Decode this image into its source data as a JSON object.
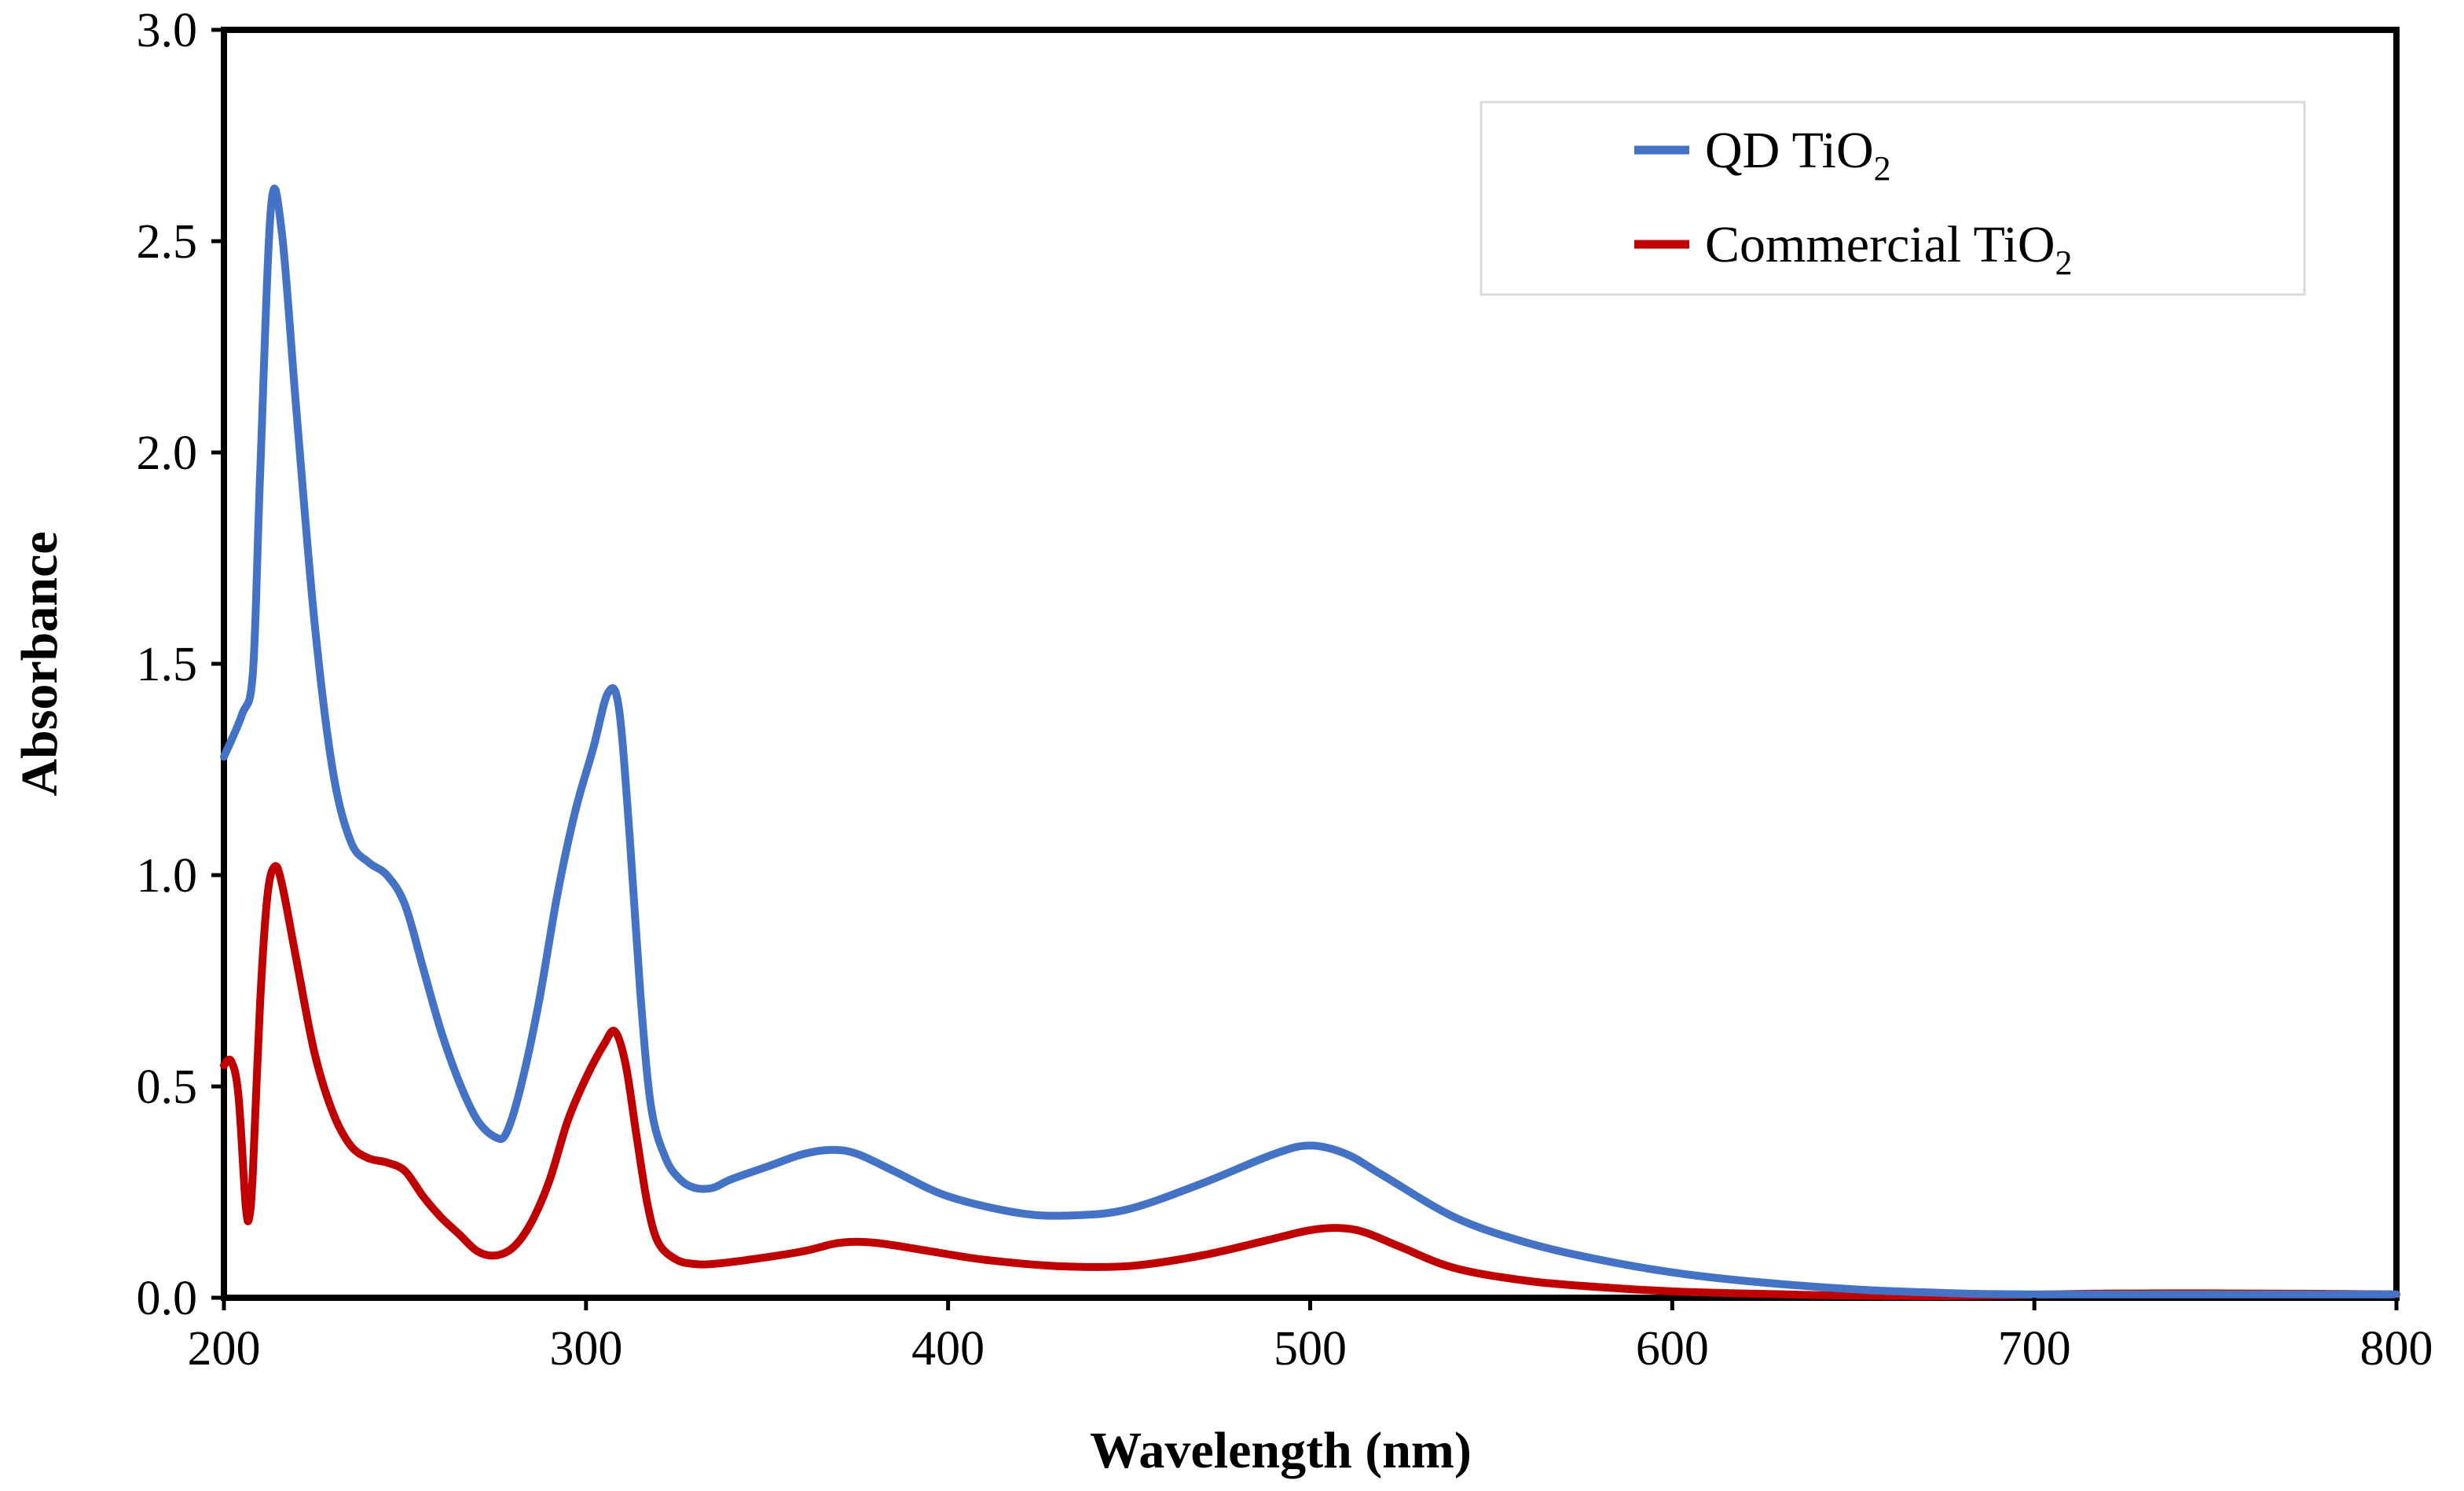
{
  "chart_data": {
    "type": "line",
    "title": "",
    "xlabel": "Wavelength (nm)",
    "ylabel": "Absorbance",
    "xlim": [
      200,
      800
    ],
    "ylim": [
      0,
      3.0
    ],
    "xticks": [
      200,
      300,
      400,
      500,
      600,
      700,
      800
    ],
    "xtick_labels": [
      "200",
      "300",
      "400",
      "500",
      "600",
      "700",
      "800"
    ],
    "yticks": [
      0,
      0.5,
      1.0,
      1.5,
      2.0,
      2.5,
      3.0
    ],
    "ytick_labels": [
      "0.0",
      "0.5",
      "1.0",
      "1.5",
      "2.0",
      "2.5",
      "3.0"
    ],
    "grid": false,
    "legend_position": "top-right",
    "series": [
      {
        "name": "QD TiO2",
        "label_main": "QD TiO",
        "label_sub": "2",
        "color": "#4472C4",
        "x": [
          200,
          205,
          208,
          210,
          213,
          216,
          220,
          225,
          230,
          235,
          240,
          245,
          250,
          255,
          260,
          265,
          270,
          275,
          278,
          282,
          287,
          292,
          297,
          302,
          306,
          309,
          312,
          315,
          318,
          322,
          326,
          330,
          335,
          340,
          350,
          360,
          368,
          375,
          385,
          400,
          420,
          435,
          450,
          470,
          490,
          500,
          510,
          520,
          540,
          560,
          580,
          600,
          620,
          650,
          680,
          700,
          720,
          760,
          800
        ],
        "y": [
          1.28,
          1.38,
          1.48,
          1.95,
          2.58,
          2.52,
          2.1,
          1.6,
          1.25,
          1.08,
          1.03,
          1.0,
          0.93,
          0.78,
          0.63,
          0.51,
          0.42,
          0.38,
          0.39,
          0.5,
          0.7,
          0.95,
          1.15,
          1.3,
          1.43,
          1.4,
          1.1,
          0.72,
          0.45,
          0.33,
          0.28,
          0.26,
          0.26,
          0.28,
          0.31,
          0.34,
          0.35,
          0.34,
          0.3,
          0.24,
          0.2,
          0.195,
          0.21,
          0.27,
          0.34,
          0.36,
          0.34,
          0.29,
          0.19,
          0.13,
          0.09,
          0.06,
          0.04,
          0.02,
          0.01,
          0.008,
          0.008,
          0.008,
          0.008
        ]
      },
      {
        "name": "Commercial TiO2",
        "label_main": "Commercial TiO",
        "label_sub": "2",
        "color": "#C00000",
        "x": [
          200,
          202,
          204,
          206,
          207,
          208,
          210,
          212,
          214,
          216,
          220,
          225,
          230,
          235,
          240,
          245,
          250,
          255,
          260,
          265,
          270,
          275,
          280,
          285,
          290,
          295,
          300,
          305,
          308,
          311,
          314,
          317,
          320,
          325,
          330,
          335,
          345,
          360,
          370,
          380,
          395,
          410,
          430,
          450,
          470,
          490,
          500,
          508,
          515,
          525,
          540,
          560,
          580,
          600,
          620,
          650,
          680,
          720,
          760,
          800
        ],
        "y": [
          0.55,
          0.56,
          0.48,
          0.22,
          0.19,
          0.3,
          0.7,
          0.95,
          1.02,
          0.98,
          0.8,
          0.58,
          0.44,
          0.36,
          0.33,
          0.32,
          0.3,
          0.24,
          0.19,
          0.15,
          0.11,
          0.1,
          0.12,
          0.18,
          0.28,
          0.42,
          0.52,
          0.6,
          0.63,
          0.55,
          0.38,
          0.22,
          0.13,
          0.09,
          0.08,
          0.08,
          0.09,
          0.11,
          0.13,
          0.13,
          0.11,
          0.09,
          0.075,
          0.075,
          0.1,
          0.14,
          0.16,
          0.165,
          0.155,
          0.12,
          0.07,
          0.04,
          0.025,
          0.015,
          0.01,
          0.005,
          0.004,
          0.01,
          0.01,
          0.008
        ]
      }
    ]
  }
}
